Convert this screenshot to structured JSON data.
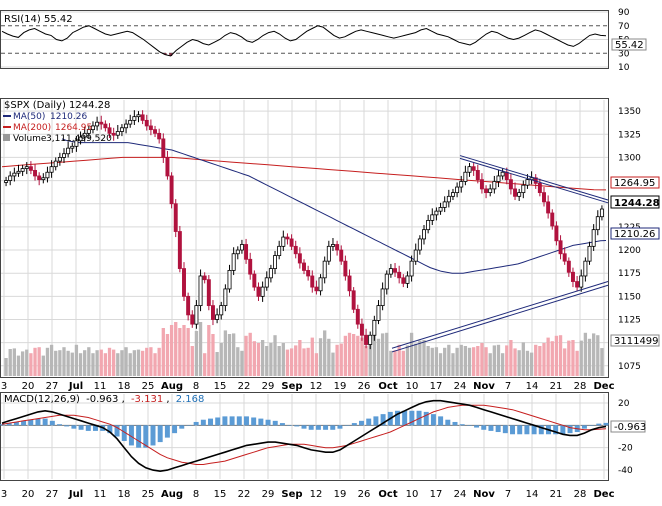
{
  "colors": {
    "background": "#ffffff",
    "grid": "#d9d9d9",
    "up": "#000000",
    "down": "#b0123e",
    "ma50": "#1f2a7a",
    "ma200": "#c61f1f",
    "volume_up": "#b7b7b7",
    "volume_down": "#f2a7b0",
    "trendline": "#1f2a7a",
    "macd": "#000000",
    "signal": "#c61f1f",
    "histogram": "#5b9bd5",
    "rsi": "#000000",
    "rsi_oversold_fill": "#8b2e45"
  },
  "chart_data": [
    {
      "type": "line",
      "panel": "rsi",
      "title": "RSI(14) 55.42",
      "current_label": "55.42",
      "y_ticks": [
        90,
        70,
        50,
        30,
        10
      ],
      "reference_lines": [
        70,
        30
      ],
      "ylim": [
        10,
        90
      ],
      "values": [
        62,
        58,
        55,
        53,
        60,
        64,
        66,
        62,
        58,
        56,
        50,
        48,
        52,
        60,
        64,
        68,
        70,
        66,
        62,
        58,
        56,
        58,
        60,
        62,
        60,
        55,
        50,
        44,
        38,
        32,
        28,
        26,
        34,
        40,
        46,
        50,
        48,
        44,
        42,
        46,
        50,
        56,
        60,
        58,
        54,
        48,
        46,
        50,
        56,
        60,
        62,
        58,
        52,
        48,
        50,
        56,
        62,
        66,
        70,
        68,
        62,
        56,
        52,
        54,
        58,
        62,
        64,
        62,
        60,
        58,
        56,
        54,
        52,
        54,
        56,
        58,
        60,
        64,
        66,
        62,
        58,
        56,
        54,
        50,
        46,
        44,
        42,
        46,
        52,
        58,
        62,
        60,
        56,
        52,
        50,
        52,
        56,
        60,
        64,
        62,
        58,
        54,
        50,
        46,
        42,
        40,
        44,
        50,
        56,
        58,
        56,
        55.42
      ]
    },
    {
      "type": "candlestick",
      "panel": "price",
      "title": "$SPX (Daily) 1244.28",
      "legend": [
        {
          "name": "MA(50)",
          "value": "1210.26"
        },
        {
          "name": "MA(200)",
          "value": "1264.95"
        },
        {
          "name": "Volume",
          "value": "3,111,499,520"
        }
      ],
      "y_ticks": [
        1350,
        1325,
        1300,
        1275,
        1250,
        1225,
        1200,
        1175,
        1150,
        1125,
        1100,
        1075
      ],
      "ylim": [
        1064,
        1362
      ],
      "price_labels": {
        "ma200": "1264.95",
        "close": "1244.28",
        "ma50": "1210.26",
        "volume": "3111499"
      },
      "x_ticks": [
        "3",
        "20",
        "27",
        "Jul",
        "11",
        "18",
        "25",
        "Aug",
        "8",
        "15",
        "22",
        "29",
        "Sep",
        "12",
        "19",
        "26",
        "Oct",
        "10",
        "17",
        "24",
        "Nov",
        "7",
        "14",
        "21",
        "28",
        "Dec"
      ],
      "close": [
        1275,
        1280,
        1283,
        1285,
        1288,
        1290,
        1286,
        1280,
        1276,
        1278,
        1284,
        1290,
        1296,
        1300,
        1304,
        1310,
        1312,
        1318,
        1322,
        1326,
        1330,
        1334,
        1338,
        1336,
        1332,
        1326,
        1324,
        1328,
        1332,
        1336,
        1340,
        1344,
        1346,
        1340,
        1334,
        1330,
        1326,
        1320,
        1300,
        1280,
        1250,
        1220,
        1180,
        1150,
        1130,
        1120,
        1140,
        1172,
        1168,
        1140,
        1125,
        1130,
        1140,
        1158,
        1178,
        1196,
        1200,
        1206,
        1190,
        1174,
        1160,
        1150,
        1160,
        1170,
        1180,
        1194,
        1204,
        1214,
        1212,
        1204,
        1196,
        1186,
        1178,
        1172,
        1160,
        1156,
        1170,
        1188,
        1204,
        1206,
        1200,
        1188,
        1172,
        1156,
        1136,
        1120,
        1108,
        1098,
        1108,
        1124,
        1140,
        1158,
        1174,
        1180,
        1176,
        1170,
        1164,
        1172,
        1188,
        1200,
        1212,
        1222,
        1232,
        1238,
        1242,
        1246,
        1252,
        1258,
        1262,
        1268,
        1274,
        1284,
        1290,
        1286,
        1276,
        1266,
        1262,
        1266,
        1274,
        1280,
        1284,
        1276,
        1266,
        1258,
        1262,
        1270,
        1276,
        1278,
        1272,
        1262,
        1252,
        1240,
        1226,
        1210,
        1196,
        1188,
        1176,
        1166,
        1160,
        1172,
        1188,
        1204,
        1222,
        1236,
        1244.28
      ],
      "ma50": [
        1320,
        1318,
        1317,
        1316,
        1316,
        1316,
        1316,
        1316,
        1316,
        1316,
        1316,
        1316,
        1316,
        1315,
        1314,
        1313,
        1312,
        1311,
        1310,
        1309,
        1308,
        1306,
        1304,
        1302,
        1300,
        1298,
        1296,
        1294,
        1292,
        1290,
        1288,
        1286,
        1284,
        1282,
        1280,
        1277,
        1274,
        1271,
        1268,
        1265,
        1262,
        1259,
        1256,
        1253,
        1250,
        1247,
        1244,
        1241,
        1238,
        1235,
        1232,
        1229,
        1226,
        1223,
        1220,
        1217,
        1214,
        1211,
        1208,
        1205,
        1202,
        1199,
        1196,
        1193,
        1190,
        1187,
        1184,
        1181,
        1179,
        1177,
        1176,
        1175,
        1175,
        1175,
        1176,
        1177,
        1178,
        1179,
        1180,
        1181,
        1182,
        1183,
        1184,
        1185,
        1187,
        1189,
        1191,
        1193,
        1195,
        1197,
        1199,
        1201,
        1203,
        1205,
        1206,
        1207,
        1208,
        1209,
        1210,
        1210.26
      ],
      "ma200": [
        1290,
        1291,
        1292,
        1293,
        1294,
        1295,
        1296,
        1297,
        1298,
        1299,
        1300,
        1300,
        1300,
        1300,
        1300,
        1299,
        1298,
        1297,
        1296,
        1295,
        1294,
        1293,
        1292,
        1291,
        1290,
        1289,
        1288,
        1287,
        1286,
        1285,
        1284,
        1283,
        1282,
        1281,
        1280,
        1279,
        1278,
        1277,
        1276,
        1275,
        1274,
        1273,
        1272,
        1271,
        1270,
        1269,
        1268,
        1267,
        1266,
        1265,
        1264.95
      ]
    },
    {
      "type": "line",
      "panel": "macd",
      "title": "MACD(12,26,9) -0.963, -3.131, 2.168",
      "title_parts": {
        "name": "MACD(12,26,9)",
        "macd": "-0.963",
        "signal": "-3.131",
        "histogram": "2.168"
      },
      "current_label": "-0.963",
      "y_ticks": [
        20,
        0,
        -20,
        -40
      ],
      "ylim": [
        -48,
        28
      ],
      "x_ticks": [
        "3",
        "20",
        "27",
        "Jul",
        "11",
        "18",
        "25",
        "Aug",
        "8",
        "15",
        "22",
        "29",
        "Sep",
        "12",
        "19",
        "26",
        "Oct",
        "10",
        "17",
        "24",
        "Nov",
        "7",
        "14",
        "21",
        "28",
        "Dec"
      ],
      "macd": [
        2,
        4,
        6,
        8,
        10,
        12,
        13,
        12,
        10,
        8,
        6,
        4,
        2,
        0,
        -2,
        -6,
        -12,
        -20,
        -28,
        -34,
        -38,
        -40,
        -41,
        -40,
        -38,
        -36,
        -34,
        -32,
        -30,
        -28,
        -26,
        -24,
        -22,
        -20,
        -18,
        -17,
        -16,
        -15,
        -15,
        -16,
        -17,
        -18,
        -20,
        -22,
        -23,
        -24,
        -24,
        -22,
        -18,
        -14,
        -10,
        -6,
        -2,
        2,
        6,
        10,
        13,
        16,
        19,
        21,
        22,
        22,
        21,
        20,
        19,
        18,
        16,
        14,
        12,
        10,
        8,
        6,
        4,
        2,
        0,
        -2,
        -4,
        -6,
        -8,
        -9,
        -9,
        -7,
        -4,
        -2,
        -0.963
      ],
      "signal": [
        1,
        2,
        3,
        4,
        5,
        6,
        7,
        8,
        9,
        9,
        9,
        8,
        7,
        5,
        3,
        1,
        -2,
        -6,
        -10,
        -14,
        -18,
        -22,
        -26,
        -29,
        -31,
        -33,
        -34,
        -35,
        -35,
        -34,
        -33,
        -32,
        -30,
        -28,
        -26,
        -24,
        -22,
        -20,
        -19,
        -18,
        -17,
        -17,
        -17,
        -18,
        -19,
        -20,
        -20,
        -19,
        -18,
        -16,
        -14,
        -12,
        -10,
        -8,
        -6,
        -3,
        0,
        3,
        6,
        9,
        12,
        14,
        16,
        17,
        18,
        18,
        18,
        18,
        17,
        16,
        15,
        14,
        12,
        10,
        8,
        6,
        4,
        2,
        0,
        -2,
        -3,
        -4,
        -4,
        -3.5,
        -3.131
      ],
      "histogram": [
        1,
        2,
        3,
        4,
        5,
        6,
        6,
        4,
        1,
        -1,
        -3,
        -4,
        -5,
        -5,
        -5,
        -7,
        -10,
        -14,
        -18,
        -20,
        -20,
        -18,
        -15,
        -11,
        -7,
        -3,
        0,
        3,
        5,
        6,
        7,
        8,
        8,
        8,
        8,
        7,
        6,
        5,
        4,
        2,
        0,
        -1,
        -3,
        -4,
        -4,
        -4,
        -4,
        -3,
        0,
        2,
        4,
        6,
        8,
        10,
        12,
        13,
        13,
        13,
        13,
        12,
        10,
        8,
        5,
        3,
        1,
        0,
        -2,
        -4,
        -5,
        -6,
        -7,
        -8,
        -8,
        -8,
        -8,
        -8,
        -8,
        -8,
        -8,
        -7,
        -6,
        -3,
        0,
        1.5,
        2.168
      ]
    }
  ]
}
